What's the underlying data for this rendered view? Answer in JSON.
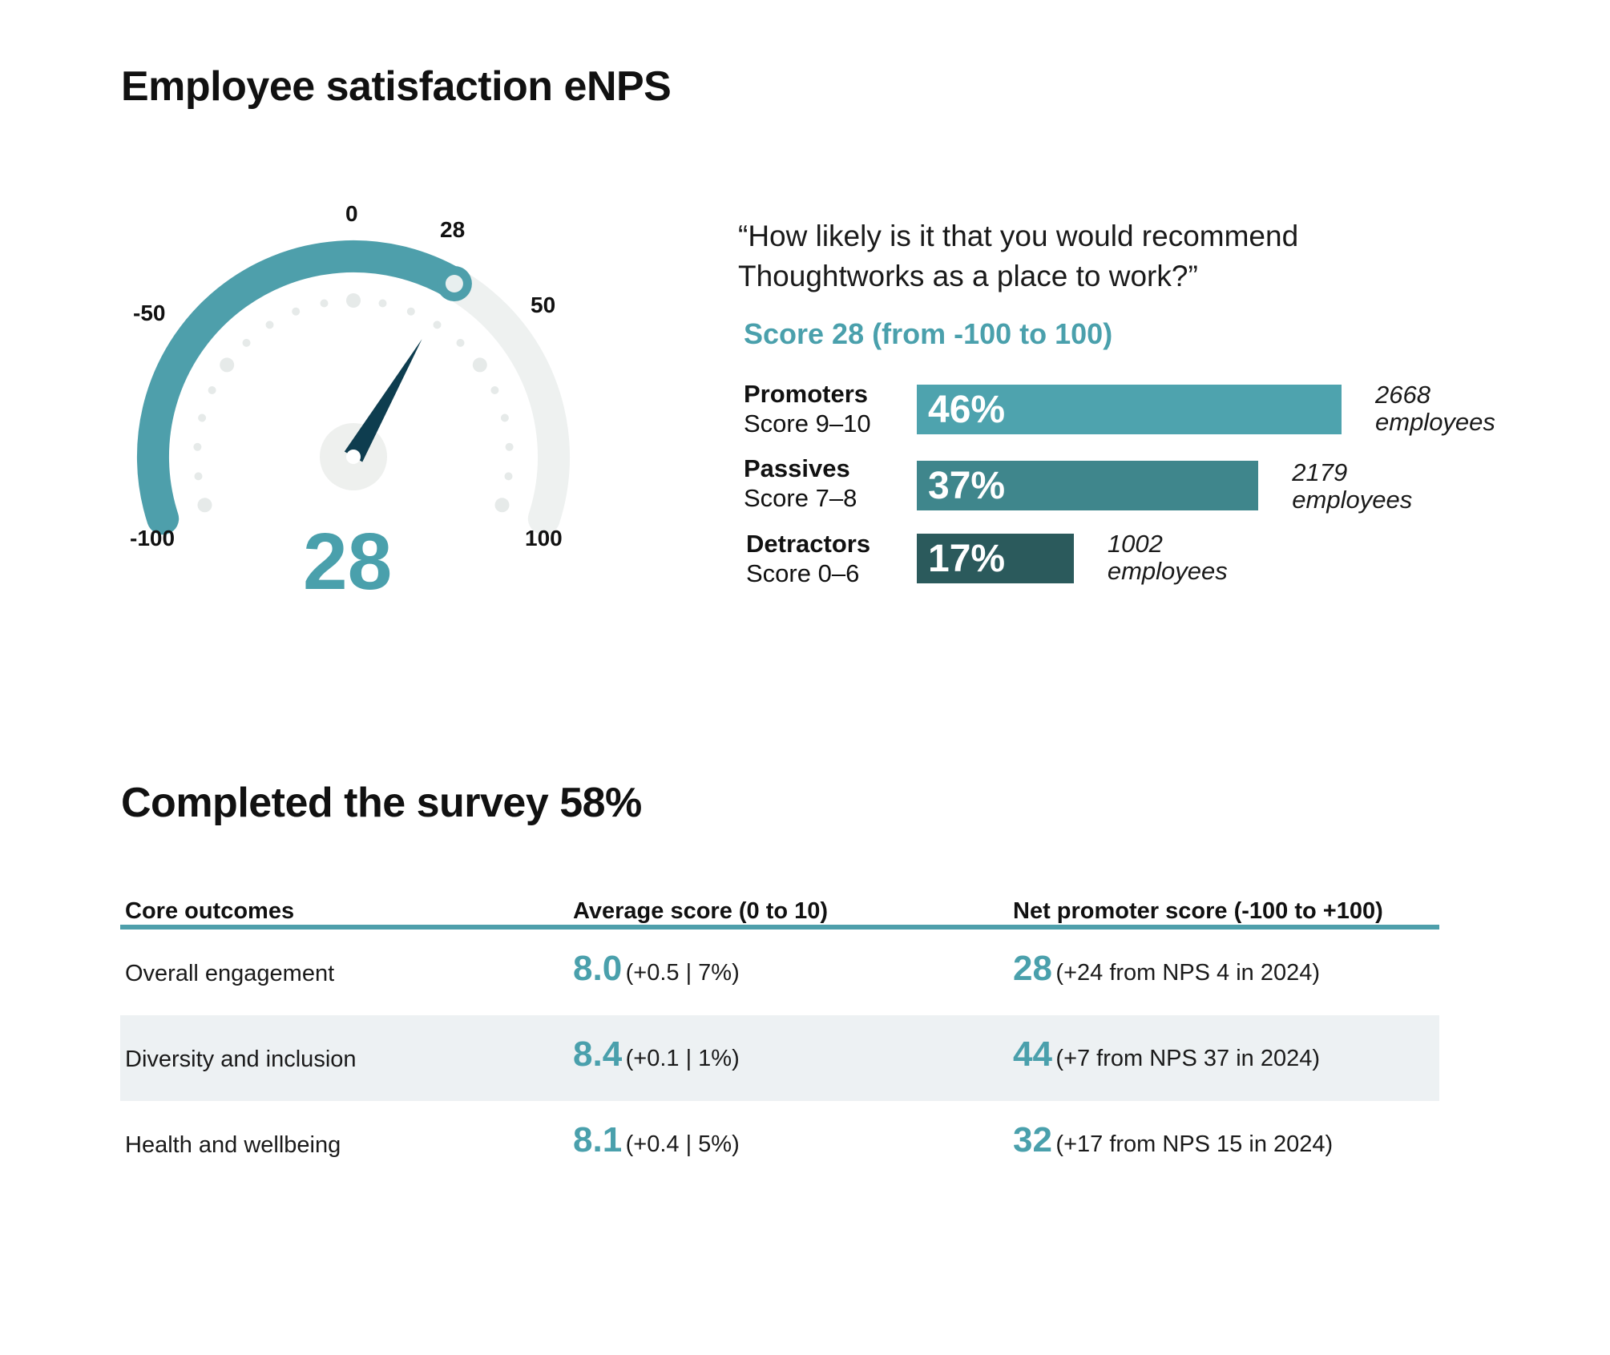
{
  "titles": {
    "enps": "Employee satisfaction eNPS",
    "survey": "Completed the survey 58%"
  },
  "chart_data": [
    {
      "type": "gauge",
      "value": 28,
      "range": [
        -100,
        100
      ],
      "tick_labels": [
        "-100",
        "-50",
        "0",
        "28",
        "50",
        "100"
      ],
      "center_label": "28",
      "colors": {
        "filled": "#4e9fab",
        "track": "#eef1f0",
        "needle": "#0e3d4f"
      }
    },
    {
      "type": "bar",
      "orientation": "horizontal",
      "question": "“How likely is it that you would recommend Thoughtworks as a place to work?”",
      "subtitle": "Score 28 (from -100 to 100)",
      "categories": [
        {
          "name": "Promoters",
          "range": "Score 9–10",
          "percent": 46,
          "label": "46%",
          "employees": "2668",
          "employees_label": "employees",
          "color": "#4ea3ae"
        },
        {
          "name": "Passives",
          "range": "Score 7–8",
          "percent": 37,
          "label": "37%",
          "employees": "2179",
          "employees_label": "employees",
          "color": "#3f868c"
        },
        {
          "name": "Detractors",
          "range": "Score 0–6",
          "percent": 17,
          "label": "17%",
          "employees": "1002",
          "employees_label": "employees",
          "color": "#2b5a5c"
        }
      ]
    }
  ],
  "table": {
    "headers": [
      "Core outcomes",
      "Average score (0 to 10)",
      "Net promoter score (-100 to +100)"
    ],
    "rows": [
      {
        "outcome": "Overall engagement",
        "avg": "8.0",
        "avg_change": "(+0.5 | 7%)",
        "nps": "28",
        "nps_change": "(+24 from NPS 4 in 2024)"
      },
      {
        "outcome": "Diversity and inclusion",
        "avg": "8.4",
        "avg_change": "(+0.1 | 1%)",
        "nps": "44",
        "nps_change": "(+7 from NPS 37 in 2024)"
      },
      {
        "outcome": "Health and wellbeing",
        "avg": "8.1",
        "avg_change": "(+0.4 | 5%)",
        "nps": "32",
        "nps_change": "(+17 from NPS 15 in 2024)"
      }
    ],
    "accent": "#4e9fab",
    "stripe": "#edf1f3"
  }
}
